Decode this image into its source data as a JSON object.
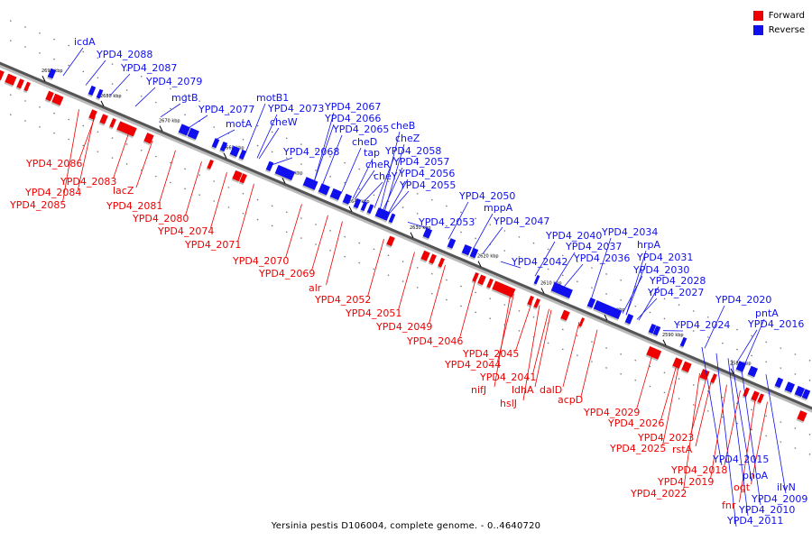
{
  "legend": [
    {
      "label": "Forward",
      "color": "#ee0000"
    },
    {
      "label": "Reverse",
      "color": "#1010ee"
    }
  ],
  "caption": "Yersinia pestis D106004, complete genome. - 0..4640720",
  "colors": {
    "forward": "#ee0000",
    "reverse": "#1010ee",
    "backbone": "#888888",
    "leader": "#000000"
  },
  "ticks": [
    "2690 kbp",
    "2680 kbp",
    "2670 kbp",
    "2660 kbp",
    "2650 kbp",
    "2640 kbp",
    "2630 kbp",
    "2620 kbp",
    "2610 kbp",
    "2600 kbp",
    "2590 kbp",
    "2580 kbp"
  ],
  "reverse_genes": [
    "icdA",
    "YPD4_2088",
    "YPD4_2087",
    "YPD4_2079",
    "mgtB",
    "YPD4_2077",
    "motA",
    "motB1",
    "YPD4_2073",
    "cheW",
    "YPD4_2068",
    "YPD4_2067",
    "YPD4_2066",
    "YPD4_2065",
    "cheD",
    "tap",
    "cheR",
    "cheY",
    "cheB",
    "cheZ",
    "YPD4_2058",
    "YPD4_2057",
    "YPD4_2056",
    "YPD4_2055",
    "YPD4_2053",
    "YPD4_2050",
    "mppA",
    "YPD4_2047",
    "YPD4_2042",
    "YPD4_2040",
    "YPD4_2037",
    "YPD4_2036",
    "YPD4_2034",
    "hrpA",
    "YPD4_2031",
    "YPD4_2030",
    "YPD4_2028",
    "YPD4_2027",
    "YPD4_2024",
    "YPD4_2020",
    "pntA",
    "YPD4_2016",
    "YPD4_2015",
    "phoA",
    "ilvN",
    "YPD4_2009",
    "YPD4_2010",
    "YPD4_2011"
  ],
  "forward_genes": [
    "YPD4_2086",
    "YPD4_2083",
    "YPD4_2084",
    "YPD4_2085",
    "lacZ",
    "YPD4_2081",
    "YPD4_2080",
    "YPD4_2074",
    "YPD4_2071",
    "YPD4_2070",
    "YPD4_2069",
    "alr",
    "YPD4_2052",
    "YPD4_2051",
    "YPD4_2049",
    "YPD4_2046",
    "YPD4_2045",
    "YPD4_2044",
    "YPD4_2041",
    "nifJ",
    "ldhA",
    "hslJ",
    "dalD",
    "acpD",
    "YPD4_2029",
    "YPD4_2026",
    "YPD4_2025",
    "YPD4_2023",
    "rstA",
    "YPD4_2018",
    "YPD4_2019",
    "YPD4_2022",
    "ogt",
    "fnr"
  ]
}
